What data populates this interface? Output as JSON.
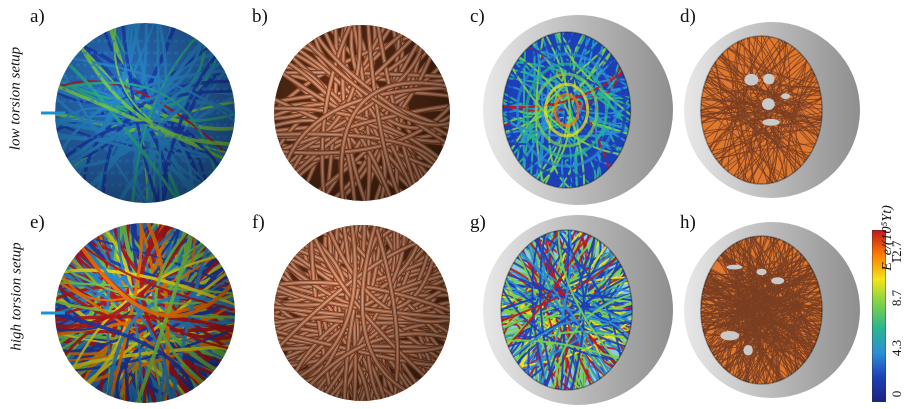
{
  "row_labels": [
    "low torsion setup",
    "high torsion setup"
  ],
  "panels": [
    {
      "letter": "a)",
      "style": "colored-strands"
    },
    {
      "letter": "b)",
      "style": "copper-strands"
    },
    {
      "letter": "c)",
      "style": "colored-cutaway"
    },
    {
      "letter": "d)",
      "style": "copper-cutaway"
    },
    {
      "letter": "e)",
      "style": "colored-strands"
    },
    {
      "letter": "f)",
      "style": "copper-strands"
    },
    {
      "letter": "g)",
      "style": "colored-cutaway"
    },
    {
      "letter": "h)",
      "style": "copper-cutaway"
    }
  ],
  "colorbar": {
    "title": "E_e/(10⁵Yt)",
    "ticks": [
      "12.7",
      "8.7",
      "4.3",
      "0"
    ],
    "colors": [
      "#c0161d",
      "#ff7a00",
      "#f3e418",
      "#7bd24b",
      "#2ab58f",
      "#2a8fd6",
      "#1d3fb8",
      "#1a237e"
    ]
  },
  "colors": {
    "copper": "#c87a55",
    "copper_light": "#f0bda0",
    "copper_dark": "#7a3e22",
    "orange_fill": "#e0782e",
    "shell_gray": "#b8b8b8",
    "shell_light": "#e8e8e8"
  }
}
